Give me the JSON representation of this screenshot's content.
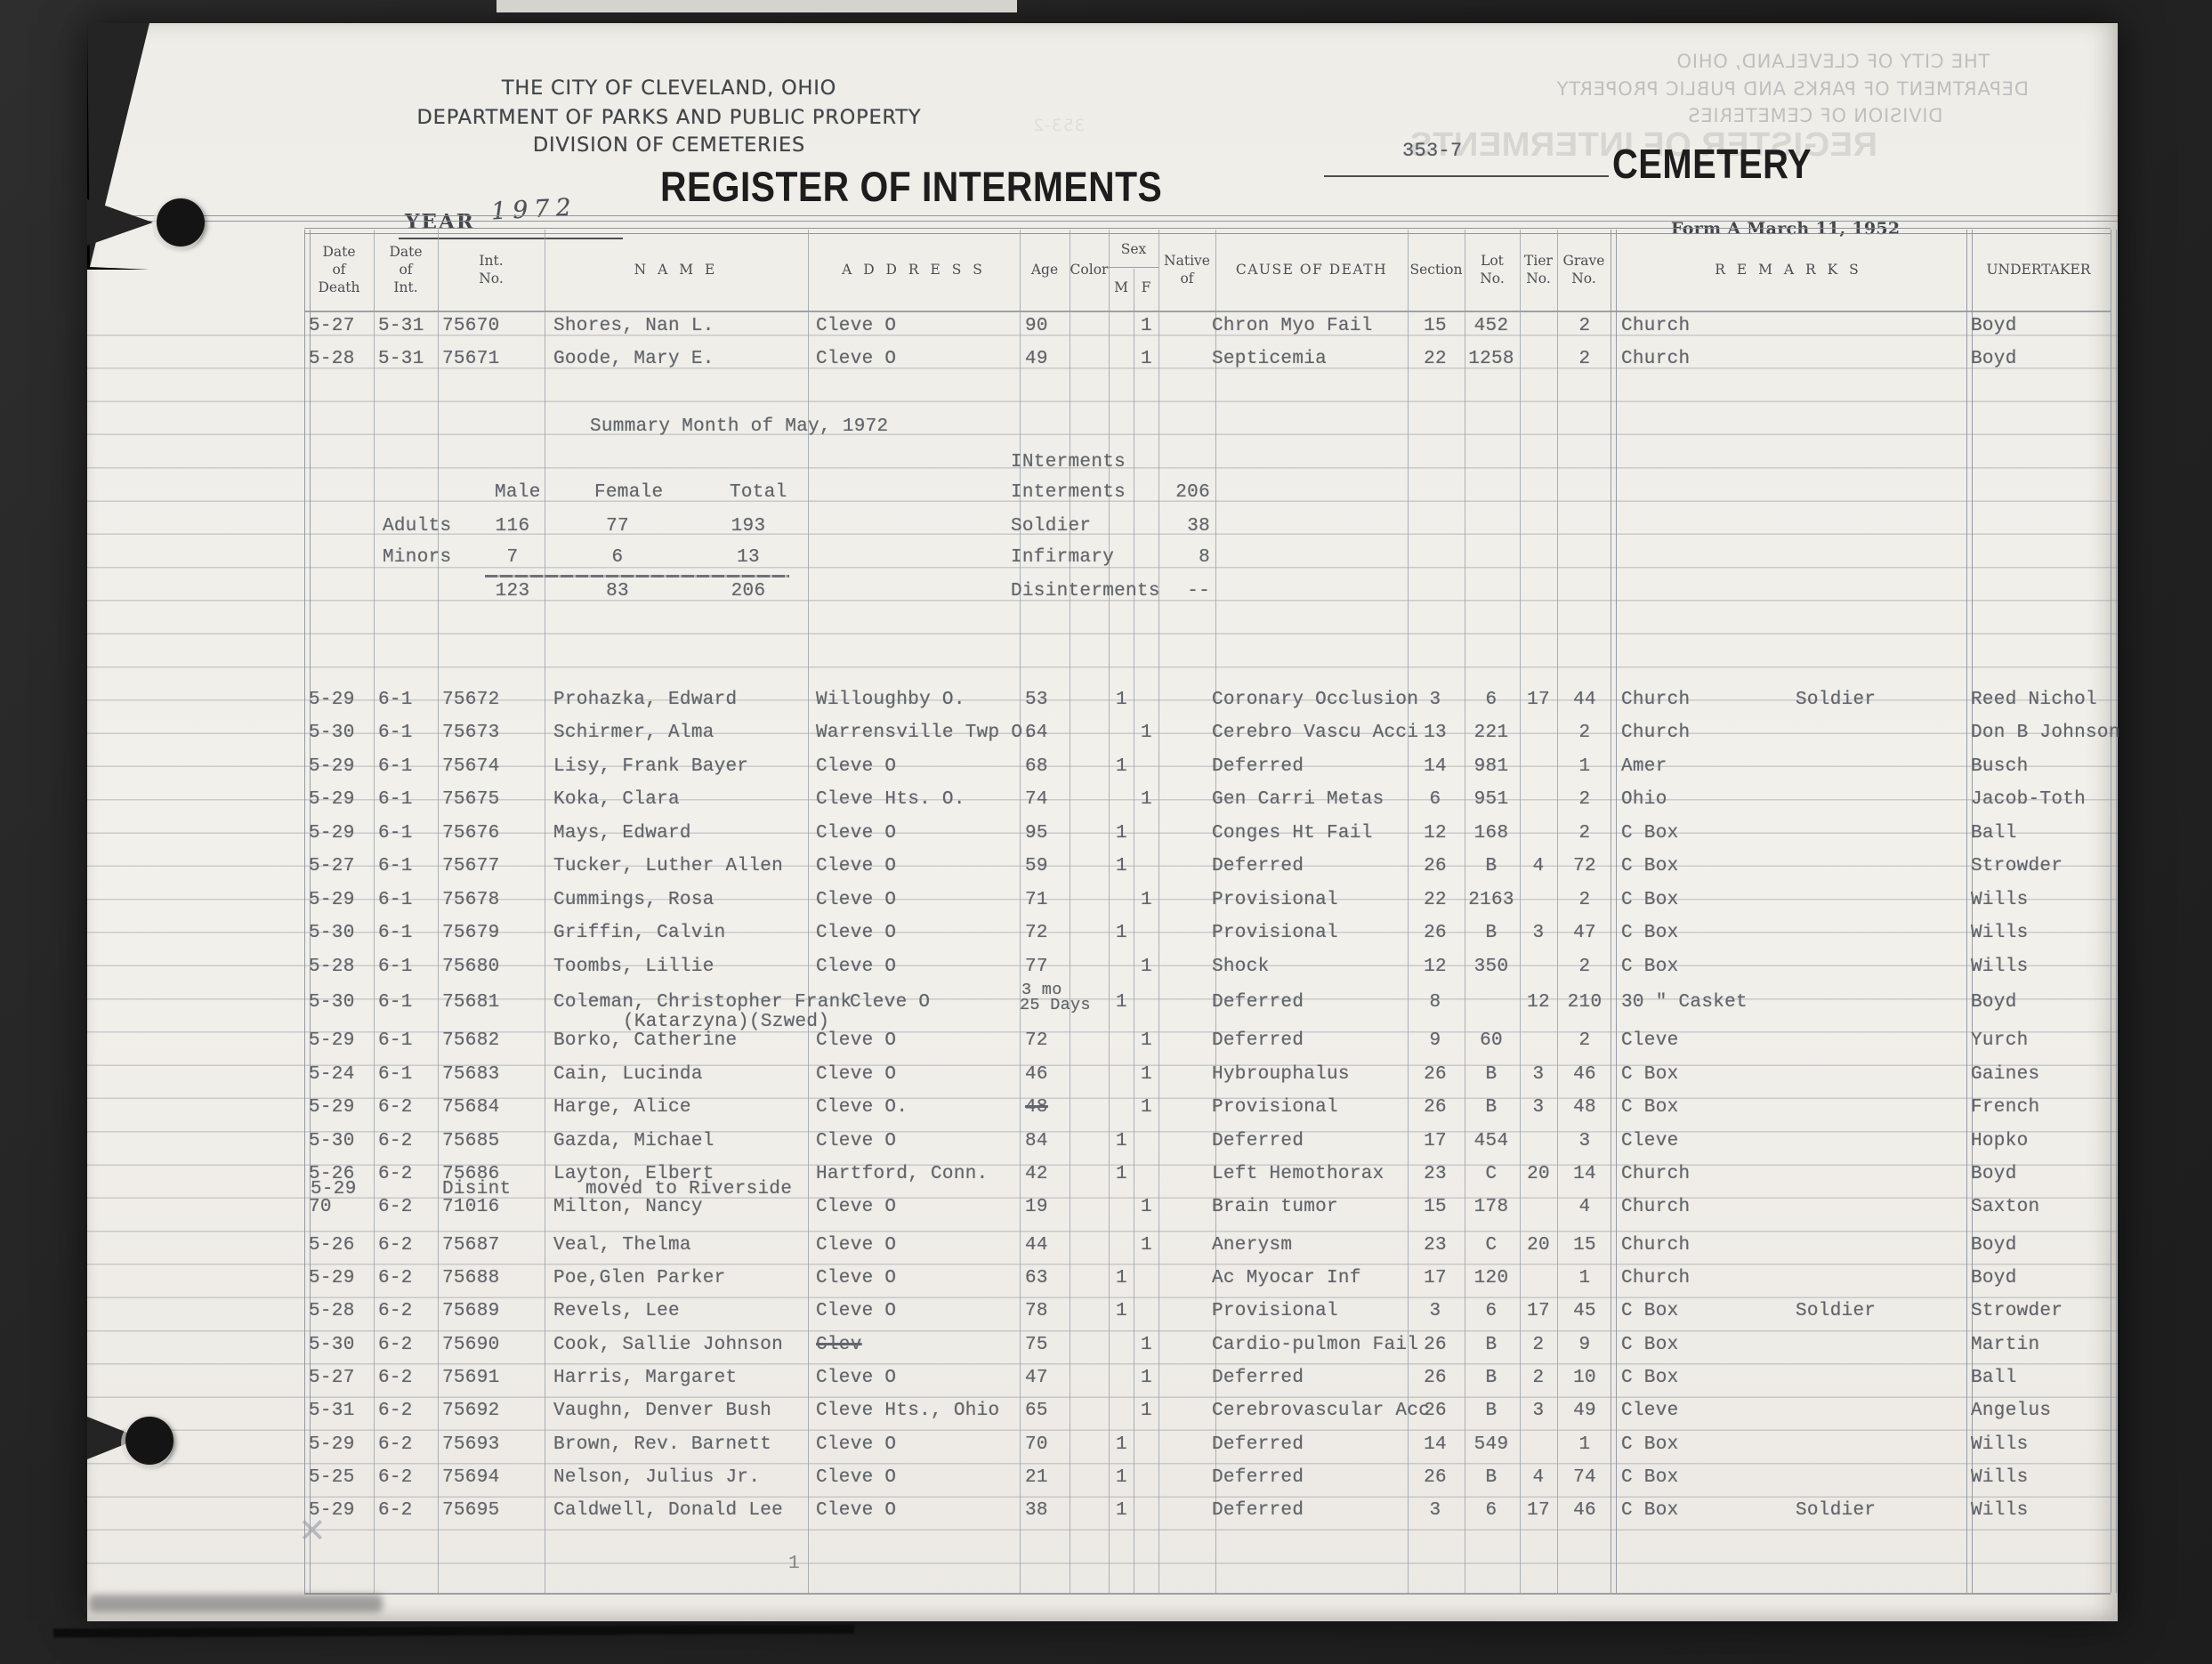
{
  "scan": {
    "header": {
      "org_line1": "THE CITY OF CLEVELAND, OHIO",
      "org_line2": "DEPARTMENT OF PARKS AND PUBLIC PROPERTY",
      "org_line3": "DIVISION OF CEMETERIES",
      "register_title": "REGISTER OF INTERMENTS",
      "page_number": "353-7",
      "cemetery_label": "CEMETERY",
      "year_label": "YEAR",
      "year_value": "1972",
      "form_note": "Form A March 11, 1952"
    },
    "ghost": {
      "line1": "THE CITY OF CLEVELAND, OHIO",
      "line2": "DEPARTMENT OF PARKS AND PUBLIC PROPERTY",
      "line3": "DIVISION OF CEMETERIES",
      "title": "REGISTER OF INTERMENTS",
      "num": "353-2"
    },
    "columns": {
      "dod": "Date\nof\nDeath",
      "doi": "Date\nof\nInt.",
      "int_no": "Int.\nNo.",
      "name": "N A M E",
      "address": "A D D R E S S",
      "age": "Age",
      "color": "Color",
      "sex": "Sex",
      "m": "M",
      "f": "F",
      "native": "Native\nof",
      "cause": "CAUSE OF DEATH",
      "section": "Section",
      "lot": "Lot\nNo.",
      "tier": "Tier\nNo.",
      "grave": "Grave\nNo.",
      "remarks": "R E M A R K S",
      "undertaker": "UNDERTAKER"
    },
    "summary": {
      "title": "Summary Month of May, 1972",
      "right_header": "INterments",
      "col_male": "Male",
      "col_female": "Female",
      "col_total": "Total",
      "adults_label": "Adults",
      "adults": [
        "116",
        "77",
        "193"
      ],
      "minors_label": "Minors",
      "minors": [
        "7",
        "6",
        "13"
      ],
      "totals": [
        "123",
        "83",
        "206"
      ],
      "right_rows": [
        [
          "Interments",
          "206"
        ],
        [
          "Soldier",
          "38"
        ],
        [
          "Infirmary",
          "8"
        ],
        [
          "Disinterments",
          "--"
        ]
      ]
    },
    "rows": [
      {
        "dod": "5-27",
        "doi": "5-31",
        "no": "75670",
        "name": "Shores, Nan L.",
        "addr": "Cleve O",
        "age": "90",
        "f": "1",
        "cause": "Chron Myo Fail",
        "sec": "15",
        "lot": "452",
        "grave": "2",
        "remark": "Church",
        "und": "Boyd"
      },
      {
        "dod": "5-28",
        "doi": "5-31",
        "no": "75671",
        "name": "Goode, Mary E.",
        "addr": "Cleve O",
        "age": "49",
        "f": "1",
        "cause": "Septicemia",
        "sec": "22",
        "lot": "1258",
        "grave": "2",
        "remark": "Church",
        "und": "Boyd"
      },
      {
        "dod": "5-29",
        "doi": "6-1",
        "no": "75672",
        "name": "Prohazka, Edward",
        "addr": "Willoughby O.",
        "age": "53",
        "m": "1",
        "cause": "Coronary Occlusion",
        "sec": "3",
        "lot": "6",
        "tier": "17",
        "grave": "44",
        "remark": "Church",
        "note": "Soldier",
        "und": "Reed Nichol"
      },
      {
        "dod": "5-30",
        "doi": "6-1",
        "no": "75673",
        "name": "Schirmer, Alma",
        "addr": "Warrensville Twp O.",
        "age": "64",
        "f": "1",
        "cause": "Cerebro Vascu Acci",
        "sec": "13",
        "lot": "221",
        "grave": "2",
        "remark": "Church",
        "und": "Don B Johnson"
      },
      {
        "dod": "5-29",
        "doi": "6-1",
        "no": "75674",
        "name": "Lisy, Frank Bayer",
        "addr": "Cleve O",
        "age": "68",
        "m": "1",
        "cause": "Deferred",
        "sec": "14",
        "lot": "981",
        "grave": "1",
        "remark": "Amer",
        "und": "Busch"
      },
      {
        "dod": "5-29",
        "doi": "6-1",
        "no": "75675",
        "name": "Koka, Clara",
        "addr": "Cleve Hts. O.",
        "age": "74",
        "f": "1",
        "cause": "Gen Carri Metas",
        "sec": "6",
        "lot": "951",
        "grave": "2",
        "remark": "Ohio",
        "und": "Jacob-Toth"
      },
      {
        "dod": "5-29",
        "doi": "6-1",
        "no": "75676",
        "name": "Mays, Edward",
        "addr": "Cleve O",
        "age": "95",
        "m": "1",
        "cause": "Conges Ht Fail",
        "sec": "12",
        "lot": "168",
        "grave": "2",
        "remark": "C Box",
        "und": "Ball"
      },
      {
        "dod": "5-27",
        "doi": "6-1",
        "no": "75677",
        "name": "Tucker, Luther Allen",
        "addr": "Cleve O",
        "age": "59",
        "m": "1",
        "cause": "Deferred",
        "sec": "26",
        "lot": "B",
        "tier": "4",
        "grave": "72",
        "remark": "C Box",
        "und": "Strowder"
      },
      {
        "dod": "5-29",
        "doi": "6-1",
        "no": "75678",
        "name": "Cummings, Rosa",
        "addr": "Cleve O",
        "age": "71",
        "f": "1",
        "cause": "Provisional",
        "sec": "22",
        "lot": "2163",
        "grave": "2",
        "remark": "C Box",
        "und": "Wills"
      },
      {
        "dod": "5-30",
        "doi": "6-1",
        "no": "75679",
        "name": "Griffin, Calvin",
        "addr": "Cleve O",
        "age": "72",
        "m": "1",
        "cause": "Provisional",
        "sec": "26",
        "lot": "B",
        "tier": "3",
        "grave": "47",
        "remark": "C Box",
        "und": "Wills"
      },
      {
        "dod": "5-28",
        "doi": "6-1",
        "no": "75680",
        "name": "Toombs, Lillie",
        "addr": "Cleve O",
        "age": "77",
        "f": "1",
        "cause": "Shock",
        "sec": "12",
        "lot": "350",
        "grave": "2",
        "remark": "C Box",
        "und": "Wills"
      },
      {
        "dod": "5-30",
        "doi": "6-1",
        "no": "75681",
        "name": "Coleman, Christopher Frank",
        "name2": "(Katarzyna)(Szwed)",
        "addr": "Cleve O",
        "age_lines": [
          "3 mo",
          "25 Days"
        ],
        "m": "1",
        "cause": "Deferred",
        "sec": "8",
        "tier": "12",
        "grave": "210",
        "remark": "30 \" Casket",
        "und": "Boyd"
      },
      {
        "dod": "5-29",
        "doi": "6-1",
        "no": "75682",
        "name": "Borko, Catherine",
        "addr": "Cleve O",
        "age": "72",
        "f": "1",
        "cause": "Deferred",
        "sec": "9",
        "lot": "60",
        "grave": "2",
        "remark": "Cleve",
        "und": "Yurch"
      },
      {
        "dod": "5-24",
        "doi": "6-1",
        "no": "75683",
        "name": "Cain, Lucinda",
        "addr": "Cleve O",
        "age": "46",
        "f": "1",
        "cause": "Hybrouphalus",
        "sec": "26",
        "lot": "B",
        "tier": "3",
        "grave": "46",
        "remark": "C Box",
        "und": "Gaines"
      },
      {
        "dod": "5-29",
        "doi": "6-2",
        "no": "75684",
        "name": "Harge, Alice",
        "addr": "Cleve O.",
        "age": "48",
        "age_struck": true,
        "f": "1",
        "cause": "Provisional",
        "sec": "26",
        "lot": "B",
        "tier": "3",
        "grave": "48",
        "remark": "C Box",
        "und": "French"
      },
      {
        "dod": "5-30",
        "doi": "6-2",
        "no": "75685",
        "name": "Gazda, Michael",
        "addr": "Cleve O",
        "age": "84",
        "m": "1",
        "cause": "Deferred",
        "sec": "17",
        "lot": "454",
        "grave": "3",
        "remark": "Cleve",
        "und": "Hopko"
      },
      {
        "dod": "5-26",
        "doi": "6-2",
        "no": "75686",
        "name": "Layton, Elbert",
        "sub_dod": "5-29",
        "sub_no": "Disint",
        "sub_name": "moved to Riverside",
        "addr": "Hartford, Conn.",
        "age": "42",
        "m": "1",
        "cause": "Left Hemothorax",
        "sec": "23",
        "lot": "C",
        "tier": "20",
        "grave": "14",
        "remark": "Church",
        "und": "Boyd"
      },
      {
        "dod": "70",
        "doi": "6-2",
        "no": "71016",
        "name": "Milton, Nancy",
        "addr": "Cleve O",
        "age": "19",
        "f": "1",
        "cause": "Brain tumor",
        "sec": "15",
        "lot": "178",
        "grave": "4",
        "remark": "Church",
        "und": "Saxton"
      },
      {
        "dod": "5-26",
        "doi": "6-2",
        "no": "75687",
        "name": "Veal, Thelma",
        "addr": "Cleve O",
        "age": "44",
        "f": "1",
        "cause": "Anerysm",
        "sec": "23",
        "lot": "C",
        "tier": "20",
        "grave": "15",
        "remark": "Church",
        "und": "Boyd"
      },
      {
        "dod": "5-29",
        "doi": "6-2",
        "no": "75688",
        "name": "Poe,Glen Parker",
        "addr": "Cleve O",
        "age": "63",
        "m": "1",
        "cause": "Ac Myocar Inf",
        "sec": "17",
        "lot": "120",
        "grave": "1",
        "remark": "Church",
        "und": "Boyd"
      },
      {
        "dod": "5-28",
        "doi": "6-2",
        "no": "75689",
        "name": "Revels, Lee",
        "addr": "Cleve O",
        "age": "78",
        "m": "1",
        "cause": "Provisional",
        "sec": "3",
        "lot": "6",
        "tier": "17",
        "grave": "45",
        "remark": "C Box",
        "note": "Soldier",
        "und": "Strowder"
      },
      {
        "dod": "5-30",
        "doi": "6-2",
        "no": "75690",
        "name": "Cook, Sallie Johnson",
        "addr": "Clev",
        "addr_struck": true,
        "age": "75",
        "f": "1",
        "cause": "Cardio-pulmon Fail",
        "sec": "26",
        "lot": "B",
        "tier": "2",
        "grave": "9",
        "remark": "C Box",
        "und": "Martin"
      },
      {
        "dod": "5-27",
        "doi": "6-2",
        "no": "75691",
        "name": "Harris, Margaret",
        "addr": "Cleve O",
        "age": "47",
        "f": "1",
        "cause": "Deferred",
        "sec": "26",
        "lot": "B",
        "tier": "2",
        "grave": "10",
        "remark": "C Box",
        "und": "Ball"
      },
      {
        "dod": "5-31",
        "doi": "6-2",
        "no": "75692",
        "name": "Vaughn, Denver Bush",
        "addr": "Cleve Hts., Ohio",
        "age": "65",
        "f": "1",
        "cause": "Cerebrovascular Acc",
        "sec": "26",
        "lot": "B",
        "tier": "3",
        "grave": "49",
        "remark": "Cleve",
        "und": "Angelus"
      },
      {
        "dod": "5-29",
        "doi": "6-2",
        "no": "75693",
        "name": "Brown, Rev. Barnett",
        "addr": "Cleve O",
        "age": "70",
        "m": "1",
        "cause": "Deferred",
        "sec": "14",
        "lot": "549",
        "grave": "1",
        "remark": "C Box",
        "und": "Wills"
      },
      {
        "dod": "5-25",
        "doi": "6-2",
        "no": "75694",
        "name": "Nelson, Julius Jr.",
        "addr": "Cleve O",
        "age": "21",
        "m": "1",
        "cause": "Deferred",
        "sec": "26",
        "lot": "B",
        "tier": "4",
        "grave": "74",
        "remark": "C Box",
        "und": "Wills"
      },
      {
        "dod": "5-29",
        "doi": "6-2",
        "no": "75695",
        "name": "Caldwell, Donald Lee",
        "addr": "Cleve O",
        "age": "38",
        "m": "1",
        "cause": "Deferred",
        "sec": "3",
        "lot": "6",
        "tier": "17",
        "grave": "46",
        "remark": "C Box",
        "note": "Soldier",
        "und": "Wills"
      }
    ],
    "marks": {
      "x_mark": "✕",
      "stray_one": "1"
    }
  }
}
